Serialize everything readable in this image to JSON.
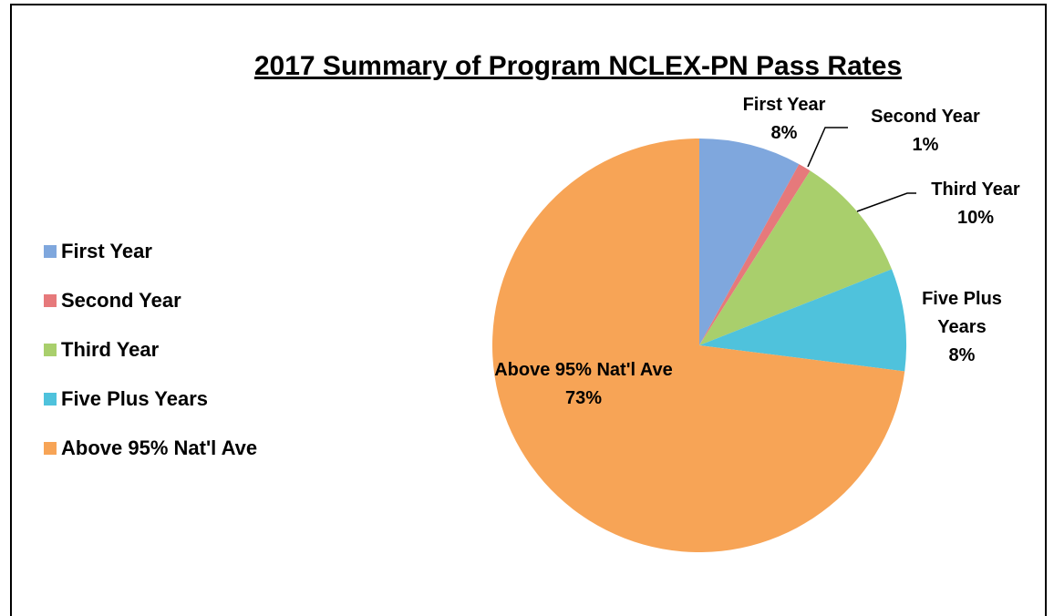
{
  "chart_data": {
    "type": "pie",
    "title": "2017 Summary of Program NCLEX-PN Pass Rates",
    "categories": [
      "First Year",
      "Second Year",
      "Third Year",
      "Five Plus Years",
      "Above 95% Nat'l Ave"
    ],
    "values": [
      8,
      1,
      10,
      8,
      73
    ],
    "value_labels": [
      "8%",
      "1%",
      "10%",
      "8%",
      "73%"
    ],
    "colors": [
      "#7fa7dd",
      "#e6797b",
      "#a9cf6c",
      "#4fc2dc",
      "#f7a456"
    ],
    "legend": "left"
  }
}
